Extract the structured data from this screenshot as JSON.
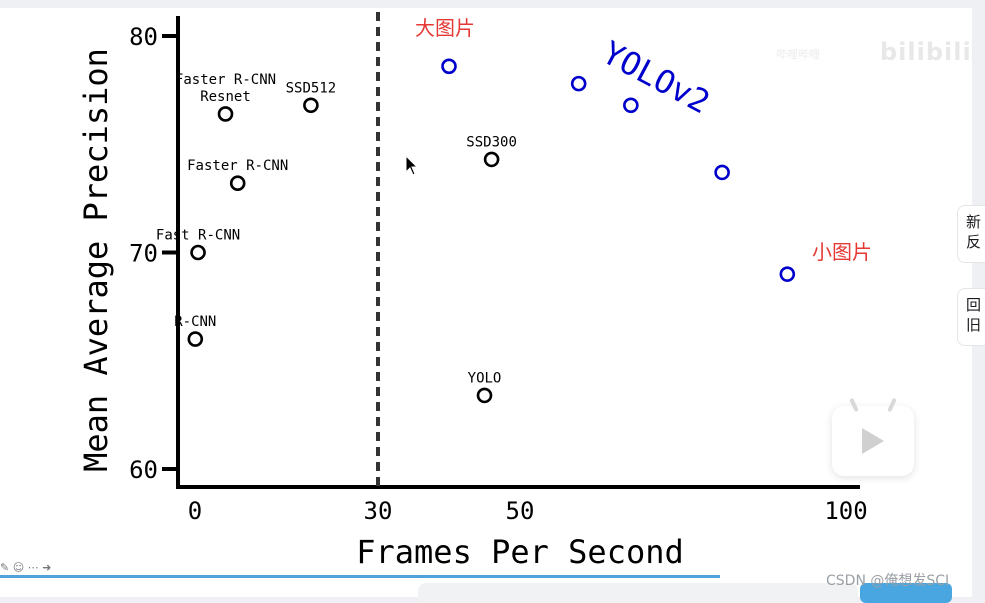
{
  "chart_data": {
    "type": "scatter",
    "xlabel": "Frames Per Second",
    "ylabel": "Mean Average Precision",
    "xlim": [
      0,
      100
    ],
    "ylim": [
      60,
      80
    ],
    "x_ticks": [
      "0",
      "30",
      "50",
      "100"
    ],
    "y_ticks": [
      "60",
      "70",
      "80"
    ],
    "realtime_threshold": 30,
    "series": [
      {
        "name": "",
        "color": "#000000",
        "points": [
          {
            "label": "R-CNN",
            "x": 0.05,
            "y": 66.0
          },
          {
            "label": "Fast R-CNN",
            "x": 0.5,
            "y": 70.0
          },
          {
            "label": "Faster R-CNN",
            "x": 7,
            "y": 73.2
          },
          {
            "label": "Faster R-CNN\nResnet",
            "x": 5,
            "y": 76.4
          },
          {
            "label": "SSD512",
            "x": 19,
            "y": 76.8
          },
          {
            "label": "SSD300",
            "x": 46,
            "y": 74.3
          },
          {
            "label": "YOLO",
            "x": 45,
            "y": 63.4
          }
        ]
      },
      {
        "name": "YOLOv2",
        "color": "#0000cc",
        "points": [
          {
            "label": "",
            "x": 40,
            "y": 78.6
          },
          {
            "label": "",
            "x": 59,
            "y": 77.8
          },
          {
            "label": "",
            "x": 67,
            "y": 76.8
          },
          {
            "label": "",
            "x": 81,
            "y": 73.7
          },
          {
            "label": "",
            "x": 91,
            "y": 69.0
          }
        ]
      }
    ],
    "annotations": {
      "large_image": "大图片",
      "small_image": "小图片",
      "yolov2": "YOLOv2"
    },
    "annotation_color": "#e53935"
  },
  "ui": {
    "side_new": "新反",
    "side_back": "回旧",
    "credit": "CSDN @俺想发SCI",
    "brand": "bilibili",
    "brand_caption": "哔哩哔哩"
  }
}
